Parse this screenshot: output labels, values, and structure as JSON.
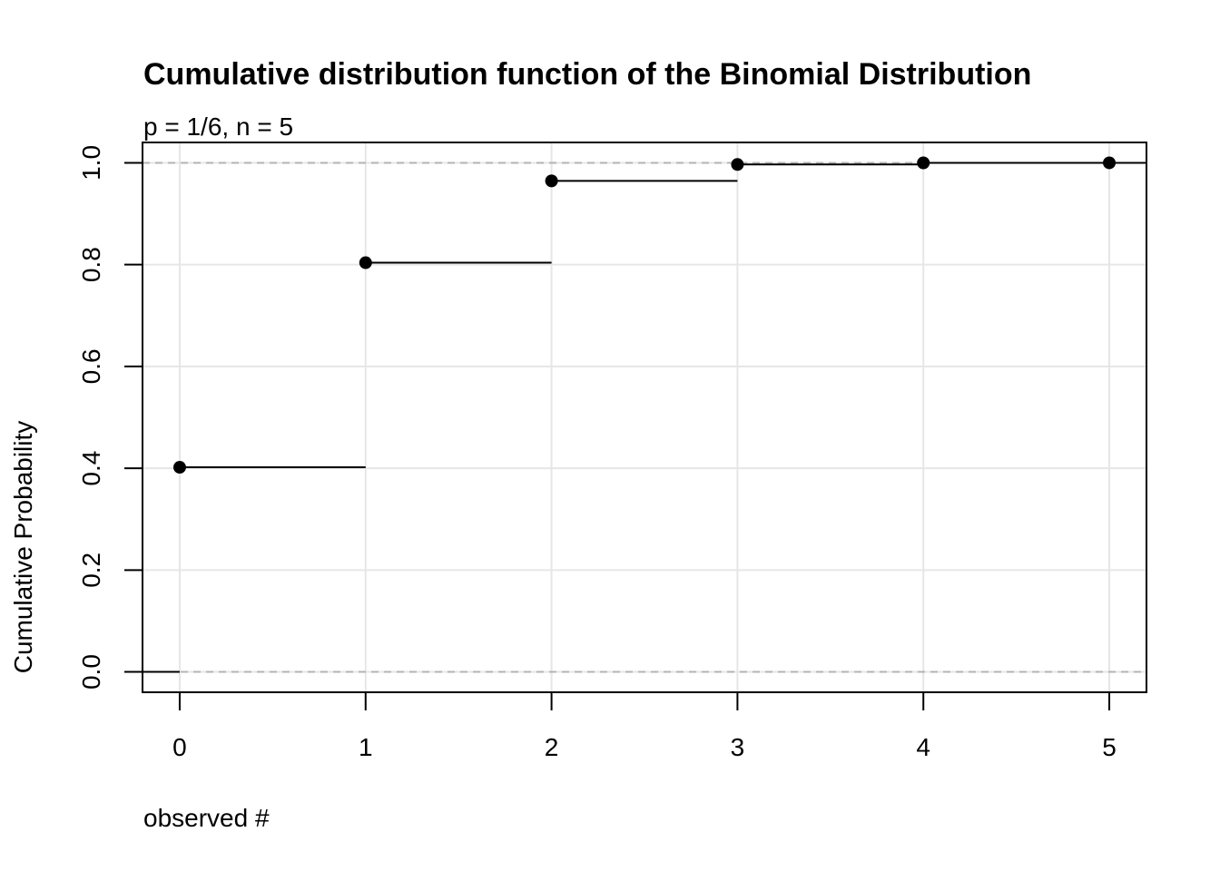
{
  "chart_data": {
    "type": "line",
    "step": true,
    "title": "Cumulative distribution function of the Binomial Distribution",
    "subtitle": "p = 1/6, n = 5",
    "xlabel": "observed #",
    "ylabel": "Cumulative Probability",
    "xlim": [
      -0.2,
      5.2
    ],
    "ylim": [
      -0.04,
      1.04
    ],
    "xticks": [
      0,
      1,
      2,
      3,
      4,
      5
    ],
    "xtick_labels": [
      "0",
      "1",
      "2",
      "3",
      "4",
      "5"
    ],
    "yticks": [
      0.0,
      0.2,
      0.4,
      0.6,
      0.8,
      1.0
    ],
    "ytick_labels": [
      "0.0",
      "0.2",
      "0.4",
      "0.6",
      "0.8",
      "1.0"
    ],
    "grid": true,
    "reference_lines": [
      0,
      1
    ],
    "x": [
      0,
      1,
      2,
      3,
      4,
      5
    ],
    "y": [
      0.4019,
      0.8038,
      0.9645,
      0.9967,
      0.9999,
      1.0
    ],
    "colors": {
      "points": "#000000",
      "steps": "#000000",
      "grid": "#e6e6e6",
      "reference": "#b3b3b3",
      "frame": "#000000"
    }
  }
}
